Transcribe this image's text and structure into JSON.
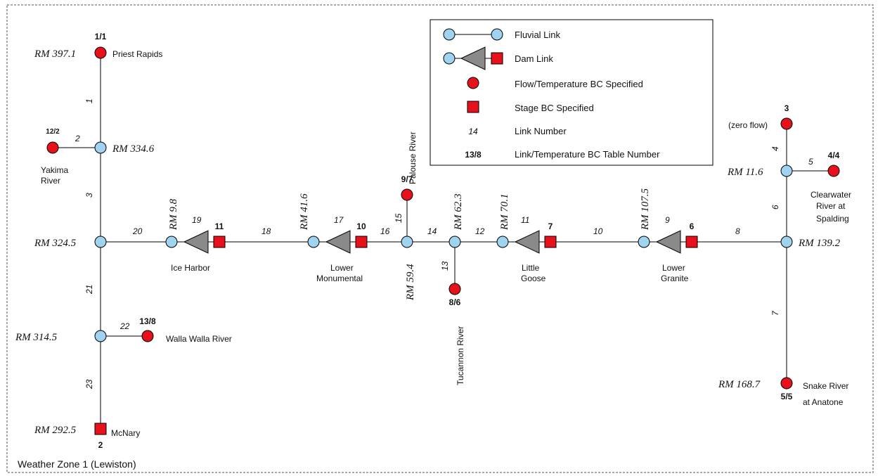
{
  "weather_zone": "Weather Zone 1 (Lewiston)",
  "legend": {
    "fluvial_link": "Fluvial Link",
    "dam_link": "Dam Link",
    "flow_bc": "Flow/Temperature BC Specified",
    "stage_bc": "Stage BC Specified",
    "link_number_sample": "14",
    "link_number": "Link Number",
    "table_number_sample": "13/8",
    "table_number": "Link/Temperature BC Table Number"
  },
  "river_miles": {
    "rm397": "RM 397.1",
    "rm334": "RM 334.6",
    "rm324": "RM 324.5",
    "rm314": "RM 314.5",
    "rm292": "RM 292.5",
    "rm9_8": "RM 9.8",
    "rm41_6": "RM 41.6",
    "rm59_4": "RM 59.4",
    "rm62_3": "RM 62.3",
    "rm70_1": "RM 70.1",
    "rm107_5": "RM 107.5",
    "rm139_2": "RM 139.2",
    "rm11_6": "RM 11.6",
    "rm168_7": "RM 168.7"
  },
  "places": {
    "priest_rapids": "Priest Rapids",
    "yakima_1": "Yakima",
    "yakima_2": "River",
    "walla_walla": "Walla Walla River",
    "mcnary": "McNary",
    "ice_harbor": "Ice Harbor",
    "lower_mon_1": "Lower",
    "lower_mon_2": "Monumental",
    "palouse": "Palouse River",
    "tucannon": "Tucannon River",
    "little_goose_1": "Little",
    "little_goose_2": "Goose",
    "lower_granite_1": "Lower",
    "lower_granite_2": "Granite",
    "zero_flow": "(zero flow)",
    "clearwater_1": "Clearwater",
    "clearwater_2": "River at",
    "clearwater_3": "Spalding",
    "snake_1": "Snake River",
    "snake_2": "at Anatone"
  },
  "table_numbers": {
    "priest": "1/1",
    "yakima": "12/2",
    "walla": "13/8",
    "mcnary": "2",
    "ice_harbor": "11",
    "lower_mon": "10",
    "palouse": "9/7",
    "tucannon": "8/6",
    "little_goose": "7",
    "lower_granite": "6",
    "zero_flow": "3",
    "clearwater": "4/4",
    "anatone": "5/5"
  },
  "links": {
    "l1": "1",
    "l2": "2",
    "l3": "3",
    "l4": "4",
    "l5": "5",
    "l6": "6",
    "l7": "7",
    "l8": "8",
    "l9": "9",
    "l10": "10",
    "l11": "11",
    "l12": "12",
    "l13": "13",
    "l14": "14",
    "l15": "15",
    "l16": "16",
    "l17": "17",
    "l18": "18",
    "l19": "19",
    "l20": "20",
    "l21": "21",
    "l22": "22",
    "l23": "23"
  },
  "colors": {
    "fluvial_node": "#9fd3f0",
    "bc_node": "#e6111b",
    "dam": "#8a8a8a"
  }
}
